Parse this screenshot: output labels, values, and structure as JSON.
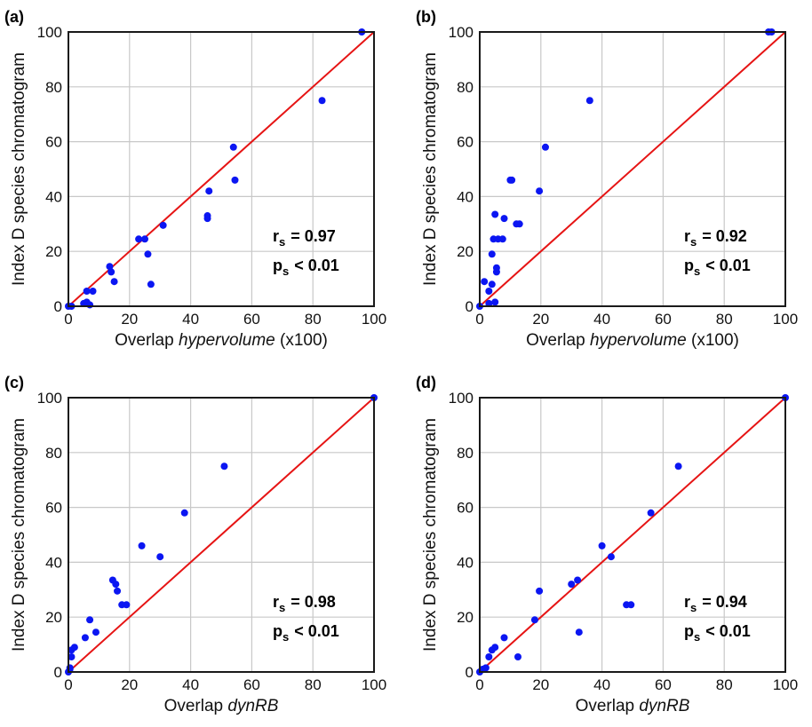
{
  "colors": {
    "points": "#0b16f2",
    "identity_line": "#e61414",
    "grid": "#c8c8c8",
    "frame": "#1a1a1a"
  },
  "chart_data": [
    {
      "type": "scatter",
      "panel_label": "(a)",
      "xlabel_prefix": "Overlap",
      "xlabel_italic": "hypervolume",
      "xlabel_suffix": "(x100)",
      "ylabel": "Index D species chromatogram",
      "xlim": [
        0,
        100
      ],
      "ylim": [
        0,
        100
      ],
      "xticks": [
        "0",
        "20",
        "40",
        "60",
        "80",
        "100"
      ],
      "yticks": [
        "0",
        "20",
        "40",
        "60",
        "80",
        "100"
      ],
      "grid": true,
      "reference_line": "identity",
      "stats": {
        "rs_label": "r",
        "rs_sub": "s",
        "rs_value": "= 0.97",
        "ps_label": "p",
        "ps_sub": "s",
        "ps_value": "< 0.01"
      },
      "points": [
        {
          "x": 0,
          "y": 0
        },
        {
          "x": 1,
          "y": 0
        },
        {
          "x": 5,
          "y": 1
        },
        {
          "x": 6,
          "y": 1.5
        },
        {
          "x": 7,
          "y": 0.5
        },
        {
          "x": 6,
          "y": 5.5
        },
        {
          "x": 8,
          "y": 5.5
        },
        {
          "x": 13.5,
          "y": 14.5
        },
        {
          "x": 14,
          "y": 12.5
        },
        {
          "x": 15,
          "y": 9
        },
        {
          "x": 23,
          "y": 24.5
        },
        {
          "x": 25,
          "y": 24.5
        },
        {
          "x": 26,
          "y": 19
        },
        {
          "x": 27,
          "y": 8
        },
        {
          "x": 31,
          "y": 29.5
        },
        {
          "x": 45.5,
          "y": 33
        },
        {
          "x": 45.5,
          "y": 32
        },
        {
          "x": 46,
          "y": 42
        },
        {
          "x": 54,
          "y": 58
        },
        {
          "x": 54.5,
          "y": 46
        },
        {
          "x": 83,
          "y": 75
        },
        {
          "x": 96,
          "y": 100
        }
      ]
    },
    {
      "type": "scatter",
      "panel_label": "(b)",
      "xlabel_prefix": "Overlap",
      "xlabel_italic": "hypervolume",
      "xlabel_suffix": "(x100)",
      "ylabel": "Index D species chromatogram",
      "xlim": [
        0,
        100
      ],
      "ylim": [
        0,
        100
      ],
      "xticks": [
        "0",
        "20",
        "40",
        "60",
        "80",
        "100"
      ],
      "yticks": [
        "0",
        "20",
        "40",
        "60",
        "80",
        "100"
      ],
      "grid": true,
      "reference_line": "identity",
      "stats": {
        "rs_label": "r",
        "rs_sub": "s",
        "rs_value": "= 0.92",
        "ps_label": "p",
        "ps_sub": "s",
        "ps_value": "< 0.01"
      },
      "points": [
        {
          "x": 0,
          "y": 0
        },
        {
          "x": 1.5,
          "y": 9
        },
        {
          "x": 3,
          "y": 1
        },
        {
          "x": 3,
          "y": 5.5
        },
        {
          "x": 4,
          "y": 8
        },
        {
          "x": 4,
          "y": 19
        },
        {
          "x": 4.5,
          "y": 24.5
        },
        {
          "x": 5,
          "y": 1.5
        },
        {
          "x": 5,
          "y": 33.5
        },
        {
          "x": 5.5,
          "y": 12.5
        },
        {
          "x": 5.5,
          "y": 14
        },
        {
          "x": 6,
          "y": 24.5
        },
        {
          "x": 7.5,
          "y": 24.5
        },
        {
          "x": 8,
          "y": 32
        },
        {
          "x": 10,
          "y": 46
        },
        {
          "x": 10.5,
          "y": 46
        },
        {
          "x": 12,
          "y": 30
        },
        {
          "x": 13,
          "y": 30
        },
        {
          "x": 19.5,
          "y": 42
        },
        {
          "x": 21.5,
          "y": 58
        },
        {
          "x": 36,
          "y": 75
        },
        {
          "x": 94.5,
          "y": 100
        },
        {
          "x": 95.5,
          "y": 100
        }
      ]
    },
    {
      "type": "scatter",
      "panel_label": "(c)",
      "xlabel_prefix": "Overlap",
      "xlabel_italic": "dynRB",
      "xlabel_suffix": "",
      "ylabel": "Index D species chromatogram",
      "xlim": [
        0,
        100
      ],
      "ylim": [
        0,
        100
      ],
      "xticks": [
        "0",
        "20",
        "40",
        "60",
        "80",
        "100"
      ],
      "yticks": [
        "0",
        "20",
        "40",
        "60",
        "80",
        "100"
      ],
      "grid": true,
      "reference_line": "identity",
      "stats": {
        "rs_label": "r",
        "rs_sub": "s",
        "rs_value": "= 0.98",
        "ps_label": "p",
        "ps_sub": "s",
        "ps_value": "< 0.01"
      },
      "points": [
        {
          "x": 0,
          "y": 0
        },
        {
          "x": 0.5,
          "y": 1
        },
        {
          "x": 0.5,
          "y": 1.5
        },
        {
          "x": 1,
          "y": 5.5
        },
        {
          "x": 1,
          "y": 8
        },
        {
          "x": 2,
          "y": 9
        },
        {
          "x": 5.5,
          "y": 12.5
        },
        {
          "x": 7,
          "y": 19
        },
        {
          "x": 9,
          "y": 14.5
        },
        {
          "x": 14.5,
          "y": 33.5
        },
        {
          "x": 15.5,
          "y": 32
        },
        {
          "x": 16,
          "y": 29.5
        },
        {
          "x": 17.5,
          "y": 24.5
        },
        {
          "x": 19,
          "y": 24.5
        },
        {
          "x": 24,
          "y": 46
        },
        {
          "x": 30,
          "y": 42
        },
        {
          "x": 38,
          "y": 58
        },
        {
          "x": 51,
          "y": 75
        },
        {
          "x": 100,
          "y": 100
        }
      ]
    },
    {
      "type": "scatter",
      "panel_label": "(d)",
      "xlabel_prefix": "Overlap",
      "xlabel_italic": "dynRB",
      "xlabel_suffix": "",
      "ylabel": "Index D species chromatogram",
      "xlim": [
        0,
        100
      ],
      "ylim": [
        0,
        100
      ],
      "xticks": [
        "0",
        "20",
        "40",
        "60",
        "80",
        "100"
      ],
      "yticks": [
        "0",
        "20",
        "40",
        "60",
        "80",
        "100"
      ],
      "grid": true,
      "reference_line": "identity",
      "stats": {
        "rs_label": "r",
        "rs_sub": "s",
        "rs_value": "= 0.94",
        "ps_label": "p",
        "ps_sub": "s",
        "ps_value": "< 0.01"
      },
      "points": [
        {
          "x": 0,
          "y": 0
        },
        {
          "x": 1,
          "y": 1
        },
        {
          "x": 2,
          "y": 1.5
        },
        {
          "x": 3,
          "y": 5.5
        },
        {
          "x": 4,
          "y": 8
        },
        {
          "x": 5,
          "y": 9
        },
        {
          "x": 8,
          "y": 12.5
        },
        {
          "x": 12.5,
          "y": 5.5
        },
        {
          "x": 18,
          "y": 19
        },
        {
          "x": 19.5,
          "y": 29.5
        },
        {
          "x": 30,
          "y": 32
        },
        {
          "x": 32,
          "y": 33.5
        },
        {
          "x": 32.5,
          "y": 14.5
        },
        {
          "x": 40,
          "y": 46
        },
        {
          "x": 43,
          "y": 42
        },
        {
          "x": 48,
          "y": 24.5
        },
        {
          "x": 49.5,
          "y": 24.5
        },
        {
          "x": 56,
          "y": 58
        },
        {
          "x": 65,
          "y": 75
        },
        {
          "x": 100,
          "y": 100
        }
      ]
    }
  ]
}
